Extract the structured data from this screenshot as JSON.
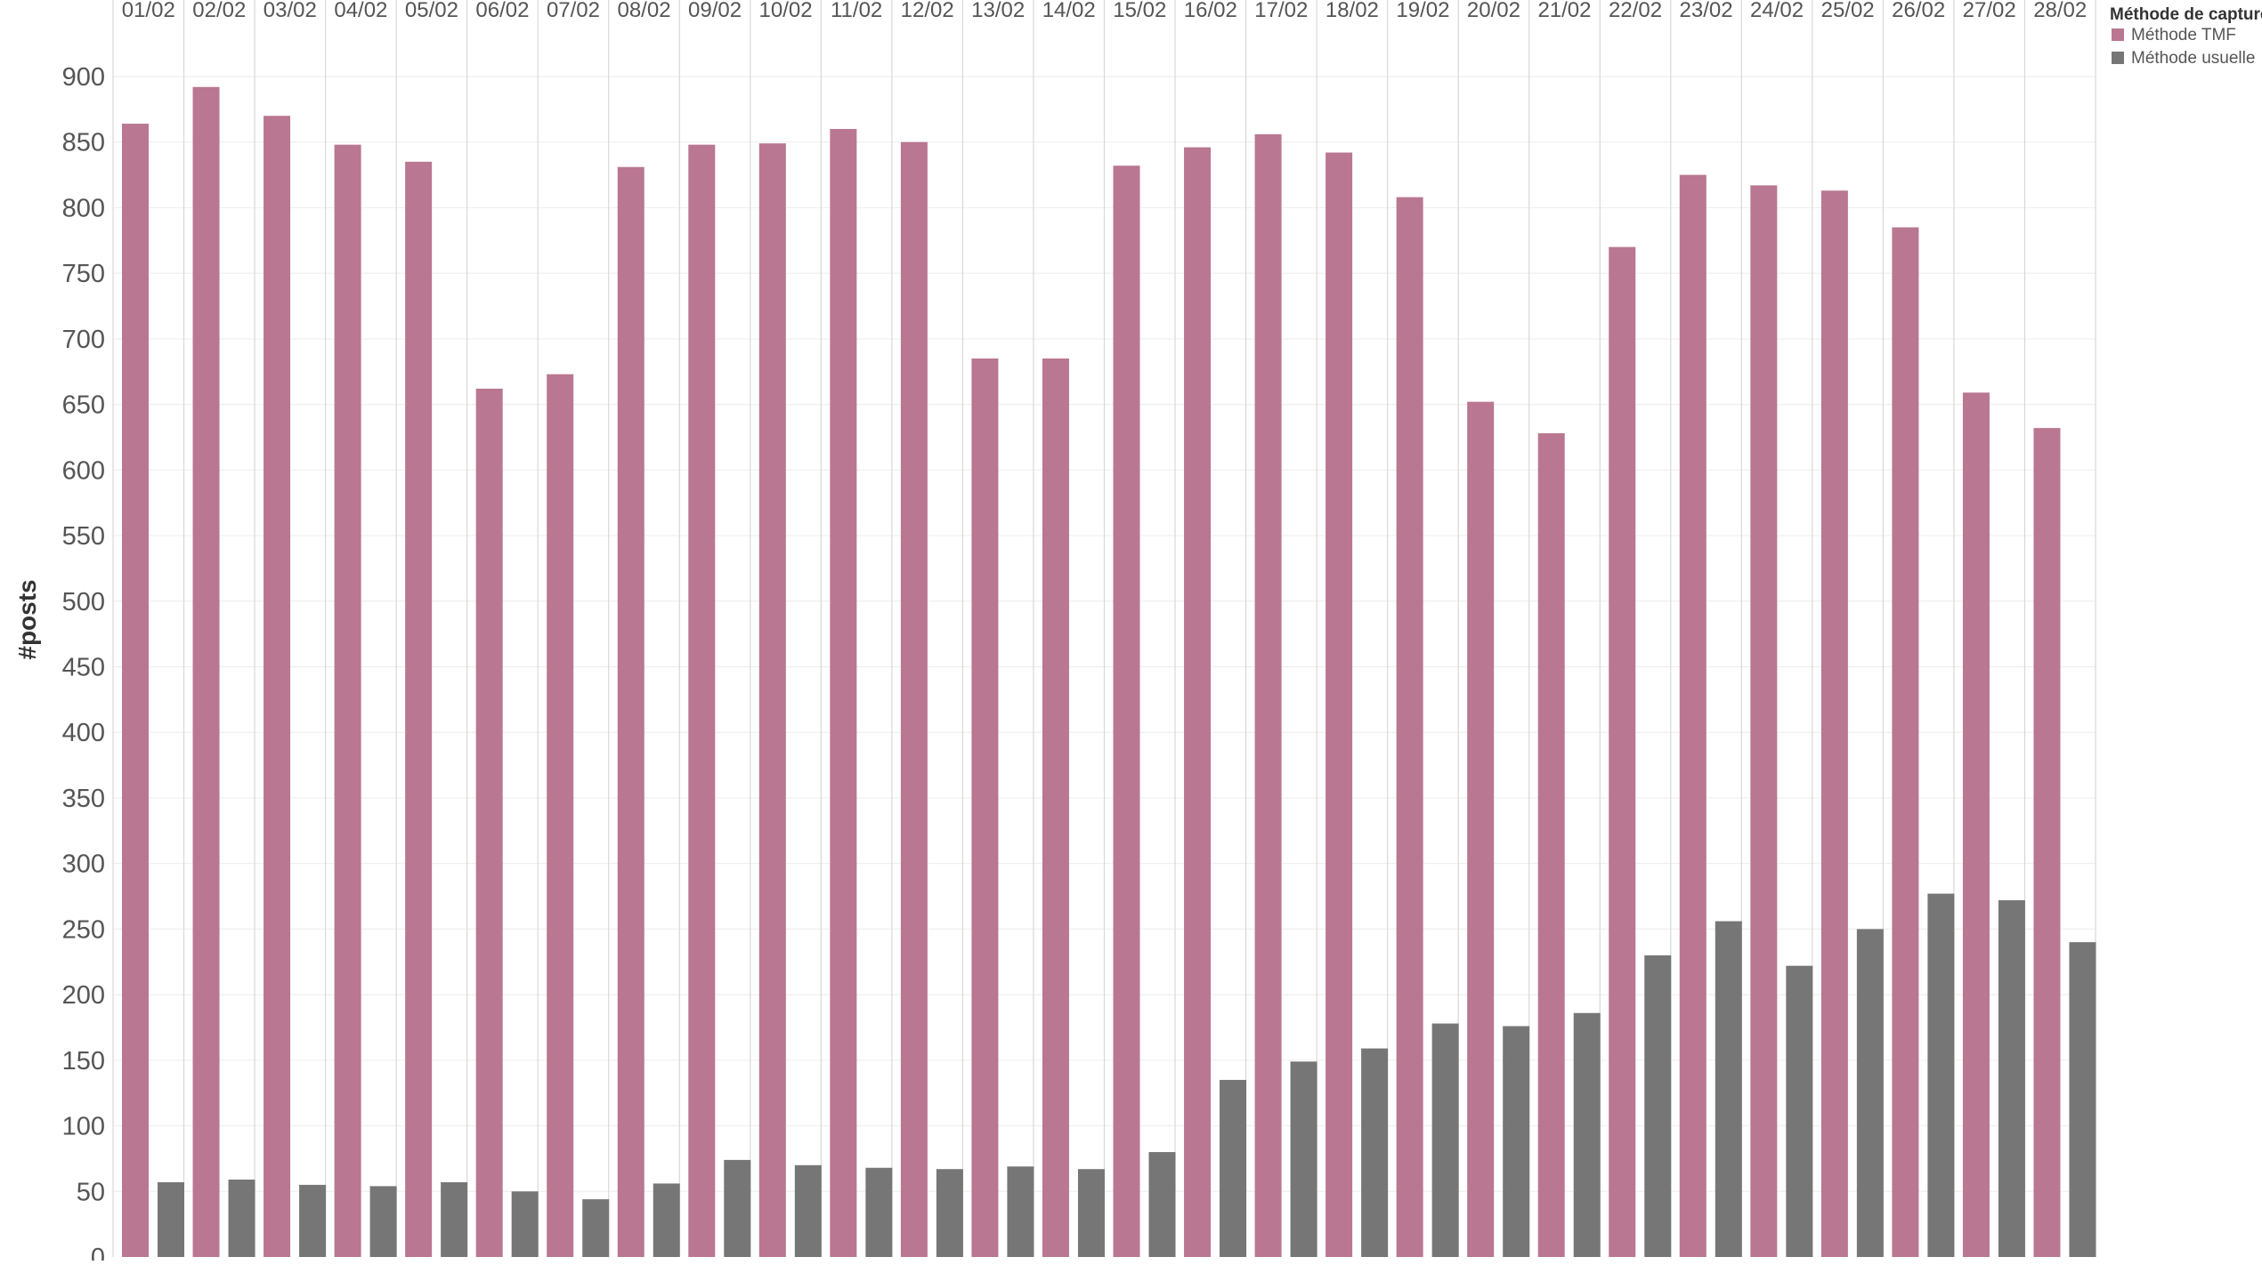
{
  "chart_data": {
    "type": "bar",
    "ylabel": "#posts",
    "ylim": [
      0,
      940
    ],
    "yticks": [
      0,
      50,
      100,
      150,
      200,
      250,
      300,
      350,
      400,
      450,
      500,
      550,
      600,
      650,
      700,
      750,
      800,
      850,
      900
    ],
    "grid": true,
    "categories": [
      "01/02",
      "02/02",
      "03/02",
      "04/02",
      "05/02",
      "06/02",
      "07/02",
      "08/02",
      "09/02",
      "10/02",
      "11/02",
      "12/02",
      "13/02",
      "14/02",
      "15/02",
      "16/02",
      "17/02",
      "18/02",
      "19/02",
      "20/02",
      "21/02",
      "22/02",
      "23/02",
      "24/02",
      "25/02",
      "26/02",
      "27/02",
      "28/02"
    ],
    "series": [
      {
        "name": "Méthode TMF",
        "color": "#b97791",
        "values": [
          864,
          892,
          870,
          848,
          835,
          662,
          673,
          831,
          848,
          849,
          860,
          850,
          685,
          685,
          832,
          846,
          856,
          842,
          808,
          652,
          628,
          770,
          825,
          817,
          813,
          785,
          659,
          632
        ]
      },
      {
        "name": "Méthode usuelle",
        "color": "#767676",
        "values": [
          57,
          59,
          55,
          54,
          57,
          50,
          44,
          56,
          74,
          70,
          68,
          67,
          69,
          67,
          80,
          135,
          149,
          159,
          178,
          176,
          186,
          230,
          256,
          222,
          250,
          277,
          272,
          240
        ]
      }
    ],
    "legend": {
      "title": "Méthode de capture",
      "position": "top-right"
    }
  }
}
